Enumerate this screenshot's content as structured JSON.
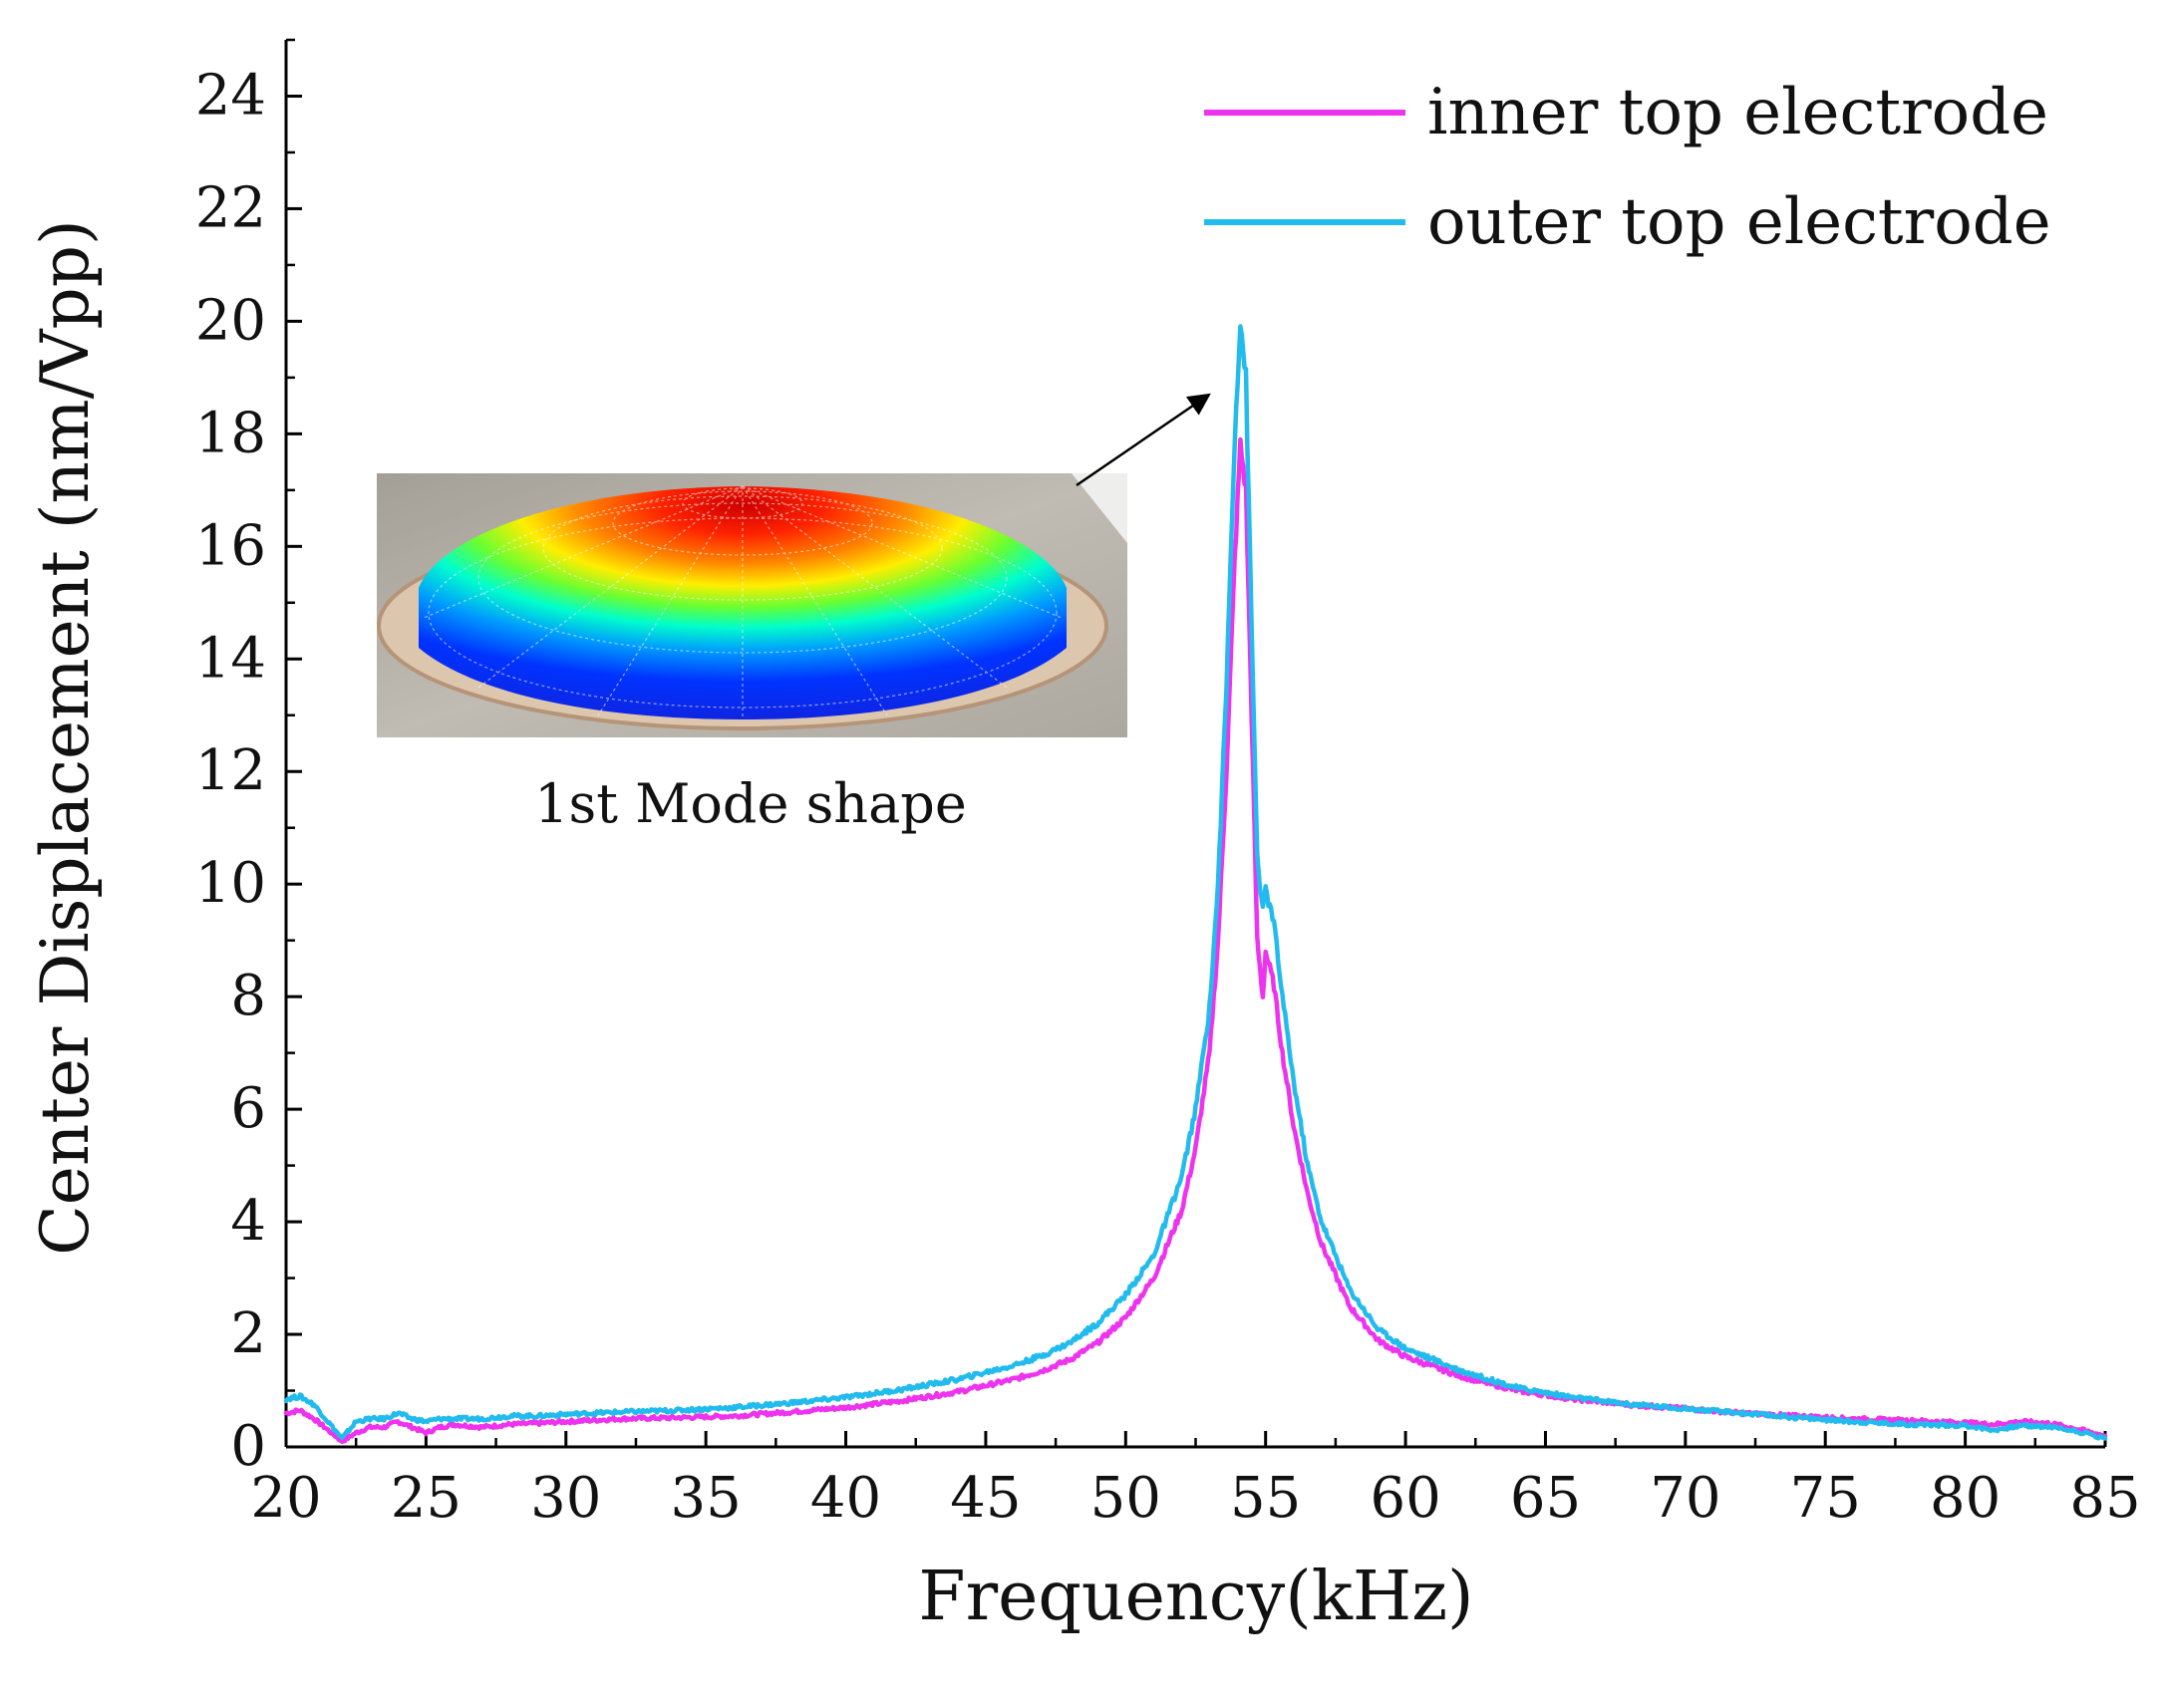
{
  "chart_data": {
    "type": "line",
    "title": "",
    "xlabel": "Frequency(kHz)",
    "ylabel": "Center Displacement (nm/Vpp)",
    "xlim": [
      20,
      85
    ],
    "ylim": [
      0,
      25
    ],
    "xticks": [
      20,
      25,
      30,
      35,
      40,
      45,
      50,
      55,
      60,
      65,
      70,
      75,
      80,
      85
    ],
    "yticks": [
      0,
      2,
      4,
      6,
      8,
      10,
      12,
      14,
      16,
      18,
      20,
      22,
      24
    ],
    "legend_position": "top-right",
    "series": [
      {
        "name": "inner top electrode",
        "color": "#ee33ee",
        "x": [
          20.0,
          20.5,
          21.0,
          21.5,
          22.0,
          22.5,
          23.0,
          23.5,
          24.0,
          24.5,
          25.0,
          25.5,
          26.0,
          27.0,
          28.0,
          29.0,
          30.0,
          32.0,
          34.0,
          36.0,
          38.0,
          40.0,
          42.0,
          44.0,
          46.0,
          47.0,
          48.0,
          49.0,
          50.0,
          51.0,
          52.0,
          52.5,
          53.0,
          53.3,
          53.6,
          53.9,
          54.1,
          54.3,
          54.5,
          54.7,
          54.9,
          55.0,
          55.1,
          55.3,
          55.6,
          56.0,
          56.5,
          57.0,
          58.0,
          59.0,
          60.0,
          62.0,
          64.0,
          66.0,
          68.0,
          70.0,
          72.0,
          74.0,
          76.0,
          78.0,
          80.0,
          81.0,
          82.0,
          83.0,
          84.0,
          85.0
        ],
        "values": [
          0.6,
          0.65,
          0.5,
          0.3,
          0.1,
          0.25,
          0.35,
          0.35,
          0.45,
          0.35,
          0.25,
          0.35,
          0.4,
          0.35,
          0.4,
          0.42,
          0.45,
          0.5,
          0.52,
          0.55,
          0.62,
          0.7,
          0.82,
          0.98,
          1.2,
          1.35,
          1.55,
          1.85,
          2.3,
          3.0,
          4.2,
          5.3,
          7.0,
          9.0,
          12.0,
          15.8,
          17.8,
          17.0,
          13.0,
          9.0,
          8.0,
          8.8,
          8.6,
          8.2,
          7.0,
          5.7,
          4.5,
          3.6,
          2.5,
          1.9,
          1.6,
          1.25,
          1.0,
          0.85,
          0.75,
          0.68,
          0.6,
          0.55,
          0.5,
          0.47,
          0.43,
          0.4,
          0.45,
          0.42,
          0.32,
          0.2
        ]
      },
      {
        "name": "outer top electrode",
        "color": "#22bbee",
        "x": [
          20.0,
          20.5,
          21.0,
          21.5,
          22.0,
          22.5,
          23.0,
          23.5,
          24.0,
          24.5,
          25.0,
          25.5,
          26.0,
          27.0,
          28.0,
          29.0,
          30.0,
          32.0,
          34.0,
          36.0,
          38.0,
          40.0,
          42.0,
          44.0,
          46.0,
          47.0,
          48.0,
          49.0,
          50.0,
          51.0,
          52.0,
          52.5,
          53.0,
          53.3,
          53.6,
          53.9,
          54.1,
          54.3,
          54.5,
          54.7,
          54.9,
          55.0,
          55.1,
          55.3,
          55.6,
          56.0,
          56.5,
          57.0,
          58.0,
          59.0,
          60.0,
          62.0,
          64.0,
          66.0,
          68.0,
          70.0,
          72.0,
          74.0,
          76.0,
          78.0,
          80.0,
          81.0,
          82.0,
          83.0,
          84.0,
          85.0
        ],
        "values": [
          0.85,
          0.9,
          0.75,
          0.45,
          0.15,
          0.45,
          0.5,
          0.5,
          0.6,
          0.5,
          0.45,
          0.5,
          0.5,
          0.5,
          0.55,
          0.55,
          0.58,
          0.62,
          0.65,
          0.7,
          0.78,
          0.88,
          1.02,
          1.2,
          1.45,
          1.62,
          1.85,
          2.2,
          2.7,
          3.4,
          4.8,
          6.0,
          7.8,
          10.0,
          13.5,
          18.0,
          20.0,
          19.0,
          14.5,
          10.5,
          9.5,
          9.9,
          9.7,
          9.3,
          8.0,
          6.5,
          5.0,
          4.0,
          2.8,
          2.1,
          1.75,
          1.35,
          1.05,
          0.88,
          0.76,
          0.68,
          0.6,
          0.52,
          0.45,
          0.4,
          0.38,
          0.3,
          0.38,
          0.36,
          0.28,
          0.15
        ]
      }
    ],
    "inset": {
      "caption": "1st Mode shape"
    }
  }
}
